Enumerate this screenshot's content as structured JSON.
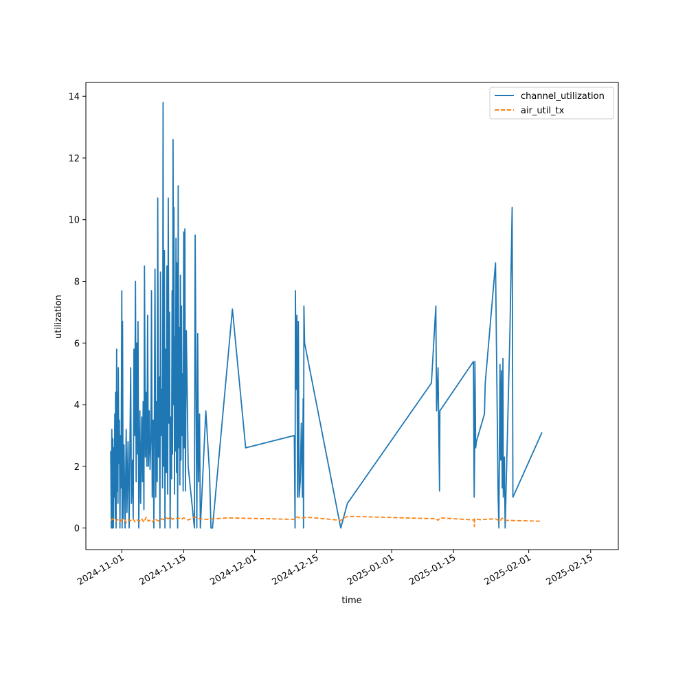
{
  "chart_data": {
    "type": "line",
    "title": "",
    "xlabel": "time",
    "ylabel": "utilization",
    "grid": false,
    "legend_position": "top-right",
    "x_range": [
      "2024-10-23T21:00",
      "2025-02-21T06:00"
    ],
    "ylim": [
      -0.7,
      14.45
    ],
    "x_ticks": [
      "2024-11-01",
      "2024-11-15",
      "2024-12-01",
      "2024-12-15",
      "2025-01-01",
      "2025-01-15",
      "2025-02-01",
      "2025-02-15"
    ],
    "y_ticks": [
      0,
      2,
      4,
      6,
      8,
      10,
      12,
      14
    ],
    "series": [
      {
        "name": "channel_utilization",
        "color": "#1f77b4",
        "style": "solid",
        "points": [
          [
            "2024-10-29T12:00",
            2.5
          ],
          [
            "2024-10-29T15:00",
            0
          ],
          [
            "2024-10-29T18:00",
            3.2
          ],
          [
            "2024-10-29T20:00",
            0
          ],
          [
            "2024-10-29T23:00",
            2.9
          ],
          [
            "2024-10-30T02:00",
            0
          ],
          [
            "2024-10-30T04:00",
            2.6
          ],
          [
            "2024-10-30T07:00",
            1.0
          ],
          [
            "2024-10-30T10:00",
            3.7
          ],
          [
            "2024-10-30T12:00",
            0.3
          ],
          [
            "2024-10-30T14:00",
            4.4
          ],
          [
            "2024-10-30T17:00",
            0
          ],
          [
            "2024-10-30T20:00",
            5.8
          ],
          [
            "2024-10-30T22:00",
            1.2
          ],
          [
            "2024-10-31T00:00",
            4.4
          ],
          [
            "2024-10-31T03:00",
            0.8
          ],
          [
            "2024-10-31T05:00",
            5.2
          ],
          [
            "2024-10-31T08:00",
            2.1
          ],
          [
            "2024-10-31T11:00",
            3.5
          ],
          [
            "2024-10-31T14:00",
            0
          ],
          [
            "2024-10-31T17:00",
            3.0
          ],
          [
            "2024-10-31T20:00",
            1.3
          ],
          [
            "2024-11-01T00:00",
            7.7
          ],
          [
            "2024-11-01T02:00",
            0
          ],
          [
            "2024-11-01T04:00",
            6.7
          ],
          [
            "2024-11-01T07:00",
            0.3
          ],
          [
            "2024-11-01T12:00",
            2.7
          ],
          [
            "2024-11-01T18:00",
            0
          ],
          [
            "2024-11-02T00:00",
            3.2
          ],
          [
            "2024-11-02T04:00",
            0.5
          ],
          [
            "2024-11-02T10:00",
            2.8
          ],
          [
            "2024-11-02T16:00",
            0
          ],
          [
            "2024-11-03T00:00",
            5.2
          ],
          [
            "2024-11-03T04:00",
            0.8
          ],
          [
            "2024-11-03T10:00",
            2.2
          ],
          [
            "2024-11-03T14:00",
            0.3
          ],
          [
            "2024-11-03T18:00",
            5.8
          ],
          [
            "2024-11-03T22:00",
            3.0
          ],
          [
            "2024-11-04T02:00",
            8.0
          ],
          [
            "2024-11-04T06:00",
            1.5
          ],
          [
            "2024-11-04T10:00",
            6.0
          ],
          [
            "2024-11-04T14:00",
            2.4
          ],
          [
            "2024-11-04T16:00",
            6.7
          ],
          [
            "2024-11-04T20:00",
            0
          ],
          [
            "2024-11-05T02:00",
            3.8
          ],
          [
            "2024-11-05T06:00",
            0.8
          ],
          [
            "2024-11-05T12:00",
            3.6
          ],
          [
            "2024-11-05T16:00",
            1.5
          ],
          [
            "2024-11-05T20:00",
            4.1
          ],
          [
            "2024-11-06T00:00",
            0.6
          ],
          [
            "2024-11-06T03:00",
            8.5
          ],
          [
            "2024-11-06T08:00",
            2.3
          ],
          [
            "2024-11-06T12:00",
            4.4
          ],
          [
            "2024-11-06T16:00",
            2.0
          ],
          [
            "2024-11-06T20:00",
            6.9
          ],
          [
            "2024-11-07T00:00",
            2.0
          ],
          [
            "2024-11-07T05:00",
            3.8
          ],
          [
            "2024-11-07T09:00",
            1.9
          ],
          [
            "2024-11-07T14:00",
            3.0
          ],
          [
            "2024-11-07T17:00",
            7.7
          ],
          [
            "2024-11-07T21:00",
            1.0
          ],
          [
            "2024-11-08T02:00",
            3.5
          ],
          [
            "2024-11-08T06:00",
            0
          ],
          [
            "2024-11-08T12:00",
            8.4
          ],
          [
            "2024-11-08T16:00",
            1.0
          ],
          [
            "2024-11-08T20:00",
            4.1
          ],
          [
            "2024-11-09T00:00",
            1.5
          ],
          [
            "2024-11-09T03:00",
            10.7
          ],
          [
            "2024-11-09T07:00",
            2.3
          ],
          [
            "2024-11-09T11:00",
            4.9
          ],
          [
            "2024-11-09T15:00",
            0
          ],
          [
            "2024-11-09T18:00",
            8.3
          ],
          [
            "2024-11-09T22:00",
            3.0
          ],
          [
            "2024-11-10T02:00",
            4.5
          ],
          [
            "2024-11-10T05:00",
            1.3
          ],
          [
            "2024-11-10T08:00",
            13.8
          ],
          [
            "2024-11-10T11:00",
            2.0
          ],
          [
            "2024-11-10T15:00",
            9.0
          ],
          [
            "2024-11-10T18:00",
            0
          ],
          [
            "2024-11-10T22:00",
            5.8
          ],
          [
            "2024-11-11T02:00",
            1.8
          ],
          [
            "2024-11-11T05:00",
            8.5
          ],
          [
            "2024-11-11T09:00",
            1.1
          ],
          [
            "2024-11-11T12:00",
            10.7
          ],
          [
            "2024-11-11T16:00",
            3.4
          ],
          [
            "2024-11-11T19:00",
            7.0
          ],
          [
            "2024-11-11T22:00",
            0
          ],
          [
            "2024-11-12T03:00",
            3.6
          ],
          [
            "2024-11-12T06:00",
            1.6
          ],
          [
            "2024-11-12T09:00",
            7.7
          ],
          [
            "2024-11-12T11:00",
            2.4
          ],
          [
            "2024-11-12T14:00",
            12.6
          ],
          [
            "2024-11-12T17:00",
            4.0
          ],
          [
            "2024-11-12T19:00",
            10.4
          ],
          [
            "2024-11-12T22:00",
            1.1
          ],
          [
            "2024-11-13T01:00",
            6.2
          ],
          [
            "2024-11-13T03:00",
            2.5
          ],
          [
            "2024-11-13T06:00",
            9.4
          ],
          [
            "2024-11-13T09:00",
            1.8
          ],
          [
            "2024-11-13T12:00",
            8.6
          ],
          [
            "2024-11-13T15:00",
            0
          ],
          [
            "2024-11-13T18:00",
            11.1
          ],
          [
            "2024-11-13T21:00",
            2.6
          ],
          [
            "2024-11-14T00:00",
            6.5
          ],
          [
            "2024-11-14T03:00",
            1.4
          ],
          [
            "2024-11-14T06:00",
            8.2
          ],
          [
            "2024-11-14T09:00",
            2.2
          ],
          [
            "2024-11-14T12:00",
            7.2
          ],
          [
            "2024-11-14T15:00",
            3.0
          ],
          [
            "2024-11-14T18:00",
            5.0
          ],
          [
            "2024-11-14T21:00",
            1.2
          ],
          [
            "2024-11-15T00:00",
            9.6
          ],
          [
            "2024-11-15T03:00",
            2.6
          ],
          [
            "2024-11-15T06:00",
            9.7
          ],
          [
            "2024-11-15T09:00",
            1.2
          ],
          [
            "2024-11-15T14:00",
            6.4
          ],
          [
            "2024-11-15T20:00",
            3.9
          ],
          [
            "2024-11-16T00:00",
            2.0
          ],
          [
            "2024-11-17T10:00",
            0
          ],
          [
            "2024-11-17T14:00",
            9.5
          ],
          [
            "2024-11-17T18:00",
            5.3
          ],
          [
            "2024-11-17T23:00",
            0
          ],
          [
            "2024-11-18T04:00",
            6.3
          ],
          [
            "2024-11-18T08:00",
            1.5
          ],
          [
            "2024-11-18T14:00",
            3.7
          ],
          [
            "2024-11-18T18:00",
            0
          ],
          [
            "2024-11-20T00:00",
            3.8
          ],
          [
            "2024-11-20T20:00",
            1.8
          ],
          [
            "2024-11-21T04:00",
            0
          ],
          [
            "2024-11-21T12:00",
            0
          ],
          [
            "2024-11-26T00:00",
            7.1
          ],
          [
            "2024-11-29T00:00",
            2.6
          ],
          [
            "2024-12-10T00:00",
            3.0
          ],
          [
            "2024-12-10T04:00",
            0
          ],
          [
            "2024-12-10T06:00",
            7.7
          ],
          [
            "2024-12-10T10:00",
            4.5
          ],
          [
            "2024-12-10T14:00",
            6.9
          ],
          [
            "2024-12-10T18:00",
            1.0
          ],
          [
            "2024-12-10T22:00",
            6.7
          ],
          [
            "2024-12-11T02:00",
            1.0
          ],
          [
            "2024-12-11T08:00",
            1.5
          ],
          [
            "2024-12-11T14:00",
            3.4
          ],
          [
            "2024-12-11T20:00",
            1.0
          ],
          [
            "2024-12-12T00:00",
            4.2
          ],
          [
            "2024-12-12T02:00",
            0
          ],
          [
            "2024-12-12T04:00",
            7.2
          ],
          [
            "2024-12-12T08:00",
            6.0
          ],
          [
            "2024-12-20T12:00",
            0
          ],
          [
            "2024-12-22T00:00",
            0.8
          ],
          [
            "2025-01-10T00:00",
            4.7
          ],
          [
            "2025-01-11T00:00",
            7.2
          ],
          [
            "2025-01-11T04:00",
            3.8
          ],
          [
            "2025-01-11T12:00",
            5.2
          ],
          [
            "2025-01-11T20:00",
            1.2
          ],
          [
            "2025-01-11T22:00",
            3.8
          ],
          [
            "2025-01-19T12:00",
            5.4
          ],
          [
            "2025-01-19T16:00",
            1.0
          ],
          [
            "2025-01-19T18:00",
            2.2
          ],
          [
            "2025-01-19T20:00",
            5.4
          ],
          [
            "2025-01-20T00:00",
            2.6
          ],
          [
            "2025-01-20T04:00",
            2.8
          ],
          [
            "2025-01-22T00:00",
            3.7
          ],
          [
            "2025-01-22T04:00",
            4.7
          ],
          [
            "2025-01-24T12:00",
            8.6
          ],
          [
            "2025-01-25T02:00",
            1.0
          ],
          [
            "2025-01-25T06:00",
            0
          ],
          [
            "2025-01-25T12:00",
            5.3
          ],
          [
            "2025-01-25T16:00",
            2.2
          ],
          [
            "2025-01-25T20:00",
            5.1
          ],
          [
            "2025-01-26T00:00",
            1.3
          ],
          [
            "2025-01-26T04:00",
            5.5
          ],
          [
            "2025-01-26T06:00",
            1.0
          ],
          [
            "2025-01-26T12:00",
            2.3
          ],
          [
            "2025-01-26T16:00",
            0
          ],
          [
            "2025-01-27T18:00",
            6.4
          ],
          [
            "2025-01-28T06:00",
            10.4
          ],
          [
            "2025-01-28T10:00",
            1.0
          ],
          [
            "2025-02-04T00:00",
            3.1
          ]
        ]
      },
      {
        "name": "air_util_tx",
        "color": "#ff7f0e",
        "style": "dashed",
        "points": [
          [
            "2024-10-29T12:00",
            0.25
          ],
          [
            "2024-10-30T00:00",
            0.3
          ],
          [
            "2024-10-30T12:00",
            0.22
          ],
          [
            "2024-10-31T00:00",
            0.28
          ],
          [
            "2024-10-31T12:00",
            0.2
          ],
          [
            "2024-11-01T00:00",
            0.27
          ],
          [
            "2024-11-01T12:00",
            0.3
          ],
          [
            "2024-11-02T00:00",
            0.18
          ],
          [
            "2024-11-02T12:00",
            0.27
          ],
          [
            "2024-11-03T00:00",
            0.24
          ],
          [
            "2024-11-03T12:00",
            0.3
          ],
          [
            "2024-11-04T00:00",
            0.2
          ],
          [
            "2024-11-04T12:00",
            0.26
          ],
          [
            "2024-11-05T00:00",
            0.22
          ],
          [
            "2024-11-05T12:00",
            0.3
          ],
          [
            "2024-11-06T00:00",
            0.19
          ],
          [
            "2024-11-06T12:00",
            0.35
          ],
          [
            "2024-11-07T00:00",
            0.22
          ],
          [
            "2024-11-07T12:00",
            0.27
          ],
          [
            "2024-11-08T00:00",
            0.2
          ],
          [
            "2024-11-08T12:00",
            0.3
          ],
          [
            "2024-11-09T00:00",
            0.25
          ],
          [
            "2024-11-09T12:00",
            0.22
          ],
          [
            "2024-11-10T00:00",
            0.3
          ],
          [
            "2024-11-10T12:00",
            0.27
          ],
          [
            "2024-11-11T00:00",
            0.33
          ],
          [
            "2024-11-11T12:00",
            0.3
          ],
          [
            "2024-11-12T00:00",
            0.35
          ],
          [
            "2024-11-12T12:00",
            0.28
          ],
          [
            "2024-11-13T00:00",
            0.33
          ],
          [
            "2024-11-13T12:00",
            0.3
          ],
          [
            "2024-11-14T00:00",
            0.32
          ],
          [
            "2024-11-14T12:00",
            0.28
          ],
          [
            "2024-11-15T00:00",
            0.33
          ],
          [
            "2024-11-15T12:00",
            0.3
          ],
          [
            "2024-11-16T00:00",
            0.26
          ],
          [
            "2024-11-17T12:00",
            0.36
          ],
          [
            "2024-11-18T12:00",
            0.3
          ],
          [
            "2024-11-20T00:00",
            0.28
          ],
          [
            "2024-11-25T00:00",
            0.33
          ],
          [
            "2024-12-10T00:00",
            0.28
          ],
          [
            "2024-12-10T12:00",
            0.36
          ],
          [
            "2024-12-11T12:00",
            0.32
          ],
          [
            "2024-12-13T00:00",
            0.35
          ],
          [
            "2024-12-20T12:00",
            0.25
          ],
          [
            "2024-12-22T00:00",
            0.38
          ],
          [
            "2025-01-11T00:00",
            0.3
          ],
          [
            "2025-01-11T12:00",
            0.25
          ],
          [
            "2025-01-12T00:00",
            0.33
          ],
          [
            "2025-01-19T16:00",
            0.26
          ],
          [
            "2025-01-19T17:00",
            0.05
          ],
          [
            "2025-01-19T18:00",
            0.3
          ],
          [
            "2025-01-21T00:00",
            0.27
          ],
          [
            "2025-01-24T12:00",
            0.3
          ],
          [
            "2025-01-25T12:00",
            0.22
          ],
          [
            "2025-01-26T00:00",
            0.32
          ],
          [
            "2025-01-27T00:00",
            0.25
          ],
          [
            "2025-02-04T00:00",
            0.22
          ]
        ]
      }
    ]
  }
}
